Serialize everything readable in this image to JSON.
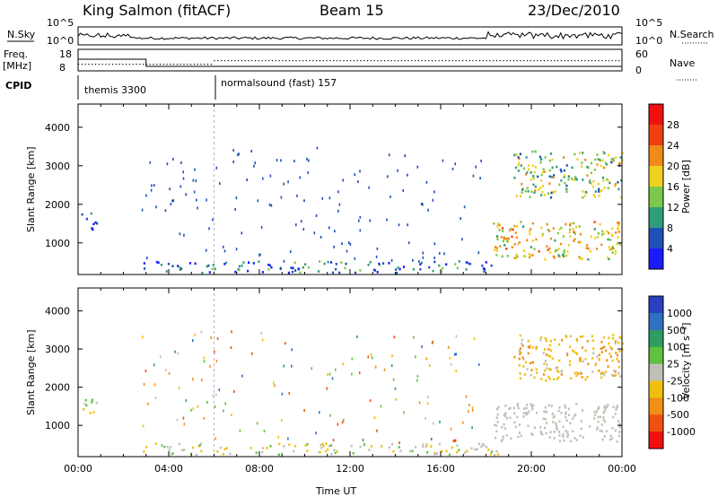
{
  "header": {
    "station": "King Salmon (fitACF)",
    "beam": "Beam 15",
    "date": "23/Dec/2010"
  },
  "top_panels": {
    "nsky_label": "N.Sky",
    "nsearch_label": "N.Search",
    "freq_label_1": "Freq.",
    "freq_label_2": "[MHz]",
    "nave_label": "Nave",
    "cpid_label": "CPID",
    "left_ticks_noise": [
      "10^5",
      "10^0"
    ],
    "right_ticks_noise": [
      "10^5",
      "10^0"
    ],
    "left_ticks_freq": [
      "18",
      "8"
    ],
    "right_ticks_nave": [
      "60",
      "0"
    ],
    "cpid_segments": [
      {
        "label": "themis 3300",
        "start_hour": 0.0
      },
      {
        "label": "normalsound (fast) 157",
        "start_hour": 6.0
      }
    ]
  },
  "chart_data": [
    {
      "type": "heatmap",
      "title": "",
      "xlabel": "",
      "ylabel": "Slant Range [km]",
      "xlim_hours": [
        0,
        24
      ],
      "ylim": [
        180,
        4600
      ],
      "x_ticks": [
        "00:00",
        "04:00",
        "08:00",
        "12:00",
        "16:00",
        "20:00",
        "00:00"
      ],
      "y_ticks": [
        1000,
        2000,
        3000,
        4000
      ],
      "colorbar": {
        "label": "Power [dB]",
        "ticks": [
          "4",
          "8",
          "12",
          "16",
          "20",
          "24",
          "28"
        ],
        "colors": [
          "#1a1aff",
          "#2050b8",
          "#2f9c7c",
          "#7bc84a",
          "#f0d020",
          "#f08a18",
          "#f04010",
          "#f01010"
        ],
        "vmin": 0,
        "vmax": 32
      },
      "features": [
        {
          "desc": "early echoes",
          "x_range": [
            0.1,
            0.8
          ],
          "y_range": [
            1350,
            1800
          ],
          "value": 6
        },
        {
          "desc": "near-range ground scatter band",
          "x_range": [
            2.8,
            18.5
          ],
          "y_range": [
            250,
            550
          ],
          "value": 7
        },
        {
          "desc": "evening main band",
          "x_range": [
            18.3,
            24.0
          ],
          "y_range": [
            600,
            1600
          ],
          "value": 18
        },
        {
          "desc": "evening far band",
          "x_range": [
            19.2,
            24.0
          ],
          "y_range": [
            2200,
            3400
          ],
          "value": 14
        }
      ]
    },
    {
      "type": "heatmap",
      "title": "",
      "xlabel": "Time UT",
      "ylabel": "Slant Range [km]",
      "xlim_hours": [
        0,
        24
      ],
      "ylim": [
        180,
        4600
      ],
      "x_ticks": [
        "00:00",
        "04:00",
        "08:00",
        "12:00",
        "16:00",
        "20:00",
        "00:00"
      ],
      "y_ticks": [
        1000,
        2000,
        3000,
        4000
      ],
      "colorbar": {
        "label": "Velocity [m s⁻¹]",
        "ticks": [
          "1000",
          "500",
          "100",
          "25",
          "-25",
          "-100",
          "-500",
          "-1000"
        ],
        "colors": [
          "#2a40c0",
          "#3070c0",
          "#2f9c60",
          "#60c040",
          "#c0c0b8",
          "#f0c010",
          "#f09018",
          "#f05010",
          "#f01010"
        ],
        "vmin": -1200,
        "vmax": 1200
      },
      "features": [
        {
          "desc": "early echoes",
          "x_range": [
            0.1,
            0.8
          ],
          "y_range": [
            1350,
            1800
          ],
          "value": 0
        },
        {
          "desc": "near-range low-velocity band",
          "x_range": [
            2.8,
            18.5
          ],
          "y_range": [
            250,
            550
          ],
          "value": -60
        },
        {
          "desc": "evening ground scatter",
          "x_range": [
            18.3,
            24.0
          ],
          "y_range": [
            600,
            1600
          ],
          "value": 0
        },
        {
          "desc": "evening far band",
          "x_range": [
            19.2,
            24.0
          ],
          "y_range": [
            2200,
            3400
          ],
          "value": -300
        }
      ]
    }
  ]
}
